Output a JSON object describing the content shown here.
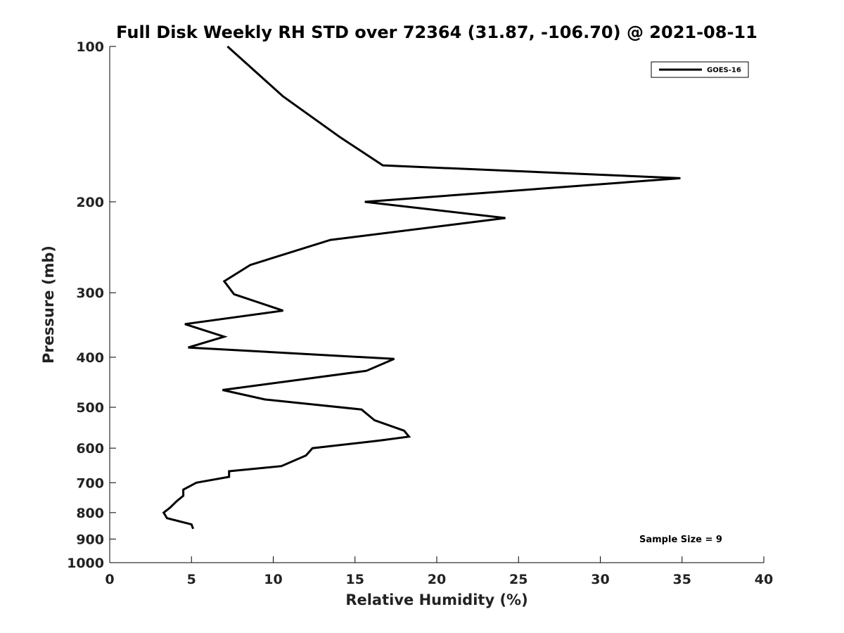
{
  "chart_data": {
    "type": "line",
    "title": "Full Disk Weekly RH STD over 72364 (31.87, -106.70) @ 2021-08-11",
    "xlabel": "Relative Humidity (%)",
    "ylabel": "Pressure (mb)",
    "xlim": [
      0,
      40
    ],
    "ylim": [
      100,
      1000
    ],
    "yscale": "log",
    "y_reversed": true,
    "xticks": [
      0,
      5,
      10,
      15,
      20,
      25,
      30,
      35,
      40
    ],
    "yticks": [
      100,
      200,
      300,
      400,
      500,
      600,
      700,
      800,
      900,
      1000
    ],
    "grid": false,
    "legend_position": "top-right",
    "series": [
      {
        "name": "GOES-16",
        "color": "#000000",
        "points": [
          [
            7.2,
            100
          ],
          [
            10.6,
            125
          ],
          [
            14.1,
            150
          ],
          [
            16.7,
            170
          ],
          [
            34.9,
            180
          ],
          [
            15.6,
            200
          ],
          [
            24.2,
            215
          ],
          [
            13.5,
            237
          ],
          [
            8.6,
            265
          ],
          [
            7.0,
            285
          ],
          [
            7.6,
            302
          ],
          [
            10.6,
            325
          ],
          [
            4.6,
            345
          ],
          [
            7.0,
            365
          ],
          [
            4.8,
            383
          ],
          [
            17.4,
            403
          ],
          [
            15.7,
            425
          ],
          [
            6.9,
            463
          ],
          [
            9.5,
            483
          ],
          [
            15.4,
            505
          ],
          [
            16.2,
            530
          ],
          [
            18.0,
            555
          ],
          [
            18.3,
            570
          ],
          [
            16.5,
            580
          ],
          [
            12.4,
            600
          ],
          [
            12.0,
            620
          ],
          [
            10.5,
            650
          ],
          [
            7.3,
            665
          ],
          [
            7.3,
            682
          ],
          [
            5.3,
            700
          ],
          [
            4.5,
            722
          ],
          [
            4.5,
            742
          ],
          [
            4.1,
            760
          ],
          [
            3.7,
            782
          ],
          [
            3.3,
            800
          ],
          [
            3.5,
            820
          ],
          [
            5.0,
            843
          ],
          [
            5.1,
            860
          ]
        ]
      }
    ],
    "annotations": [
      {
        "text": "Sample Size = 9",
        "position": "bottom-right"
      }
    ]
  }
}
